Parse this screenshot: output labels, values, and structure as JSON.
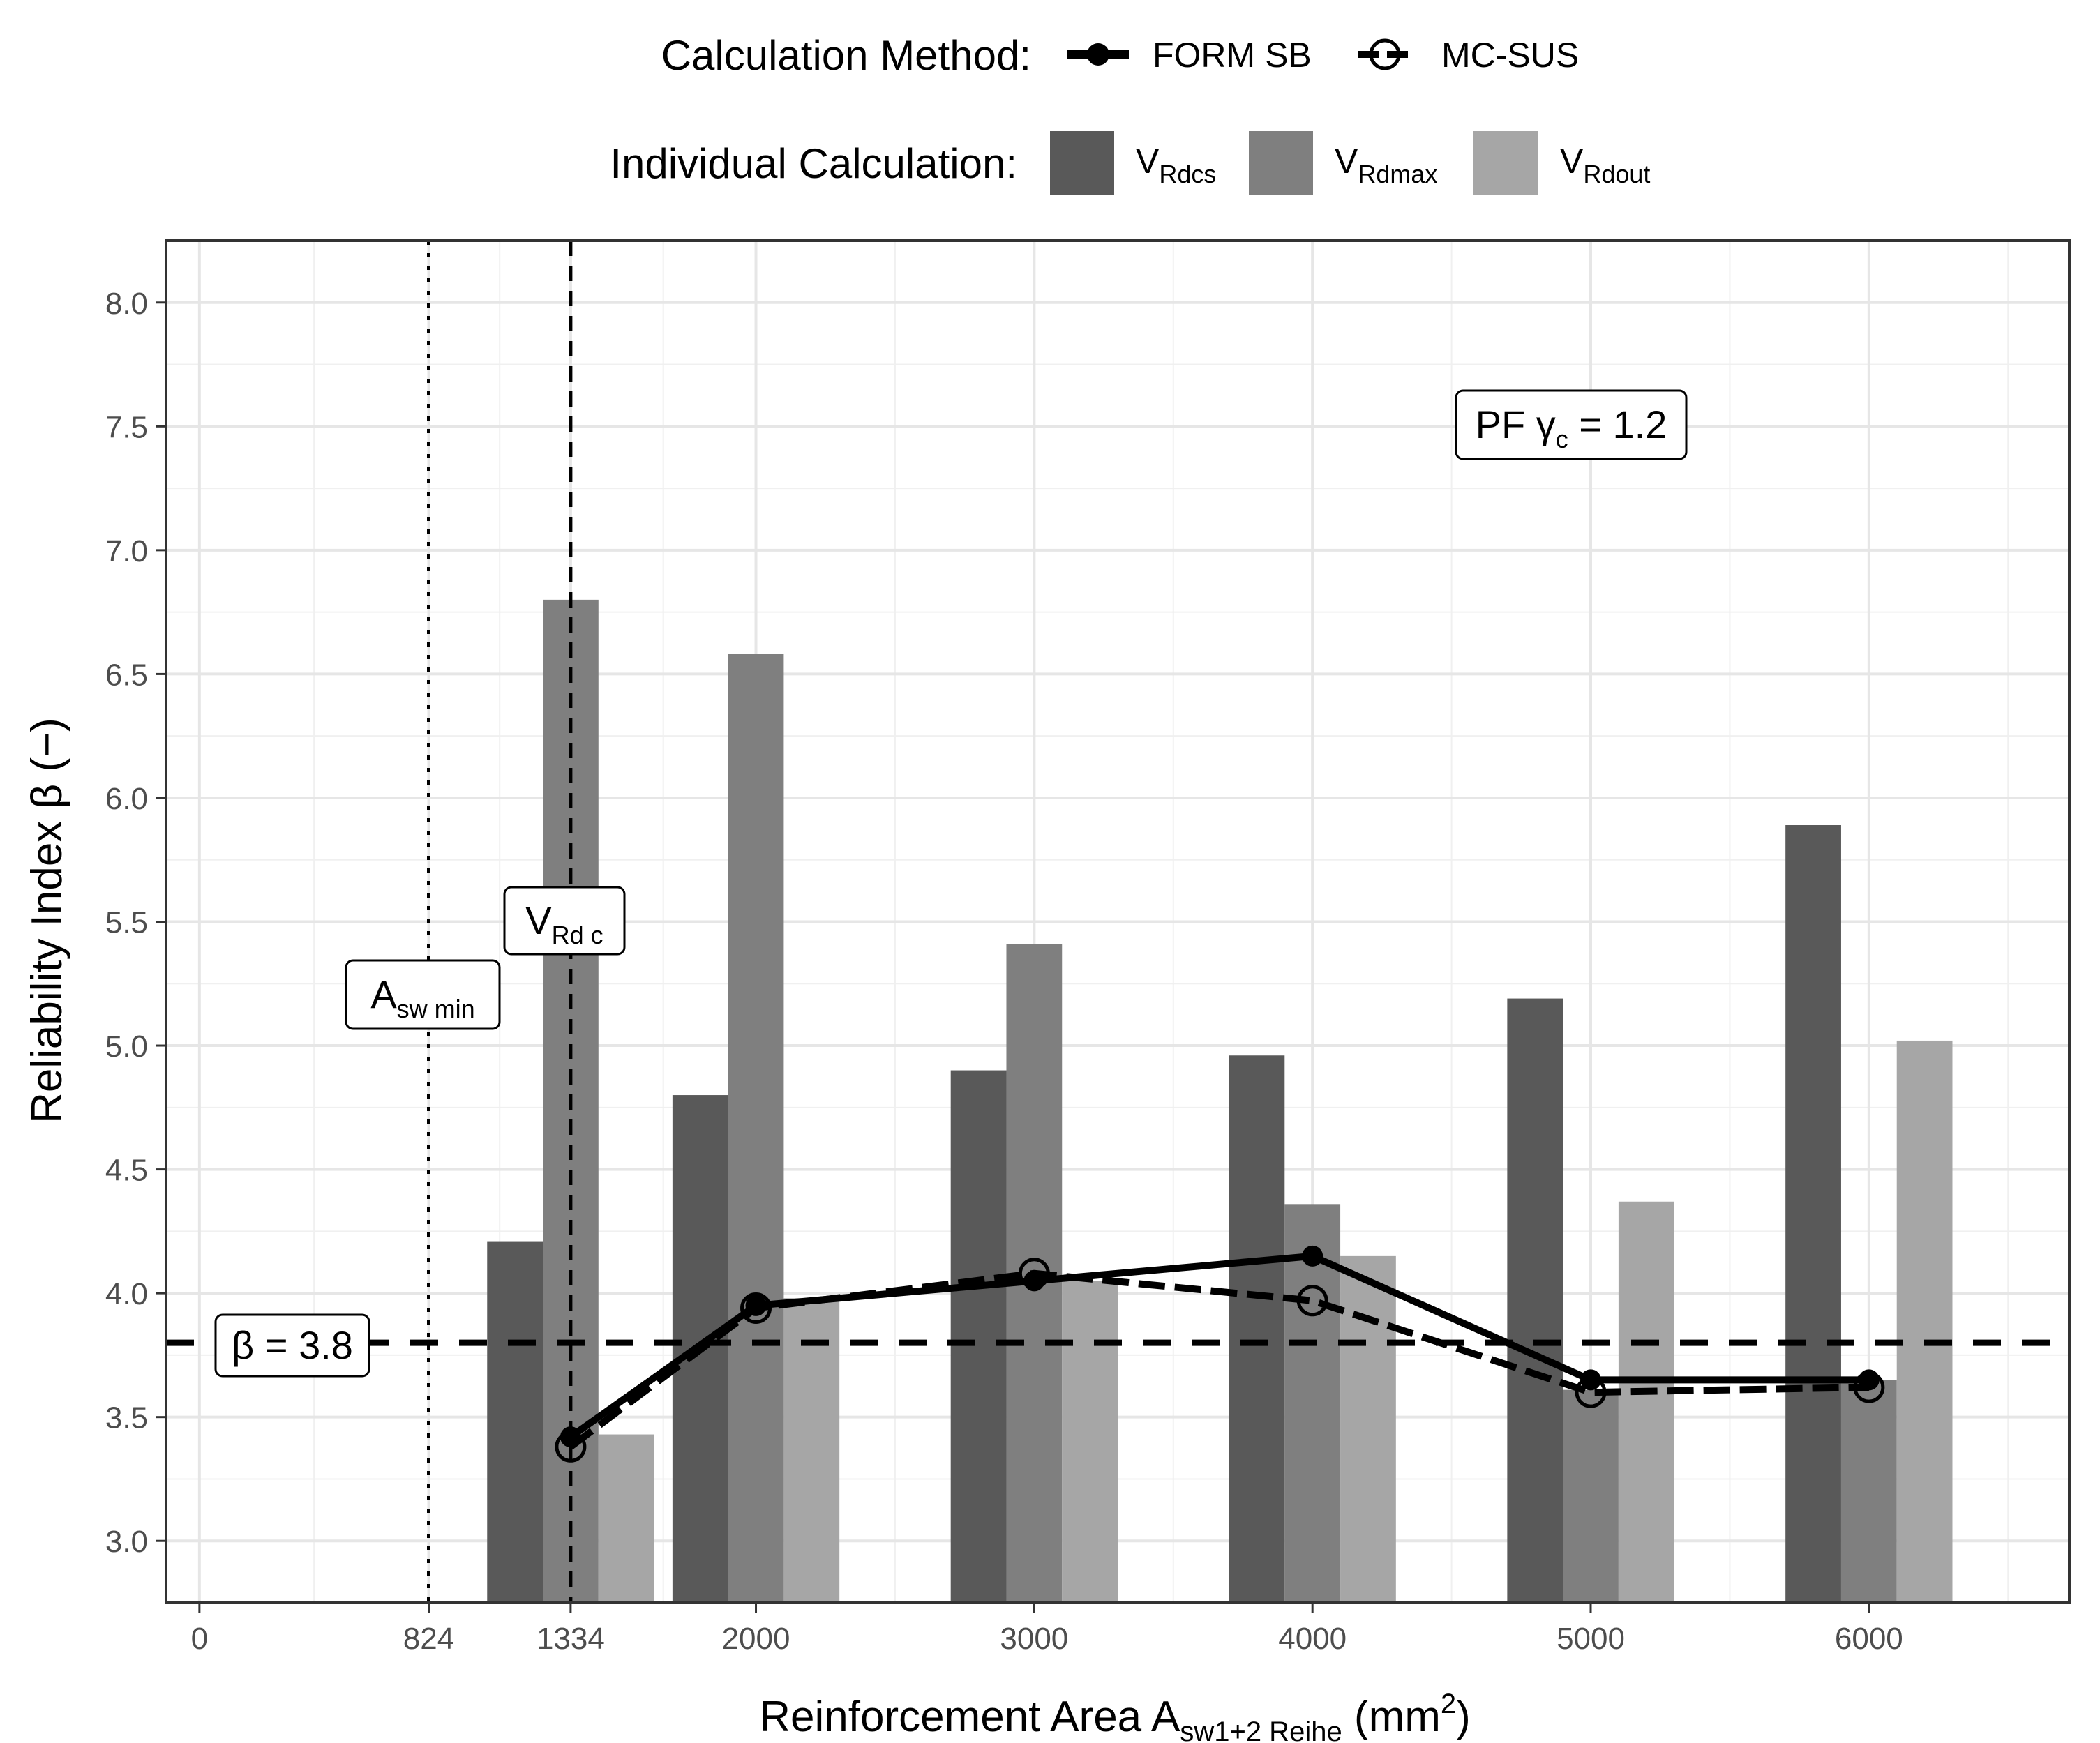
{
  "chart_data": {
    "type": "bar",
    "title": "",
    "xlabel": "Reinforcement Area A",
    "xlabel_sub": "sw1+2 Reihe",
    "xlabel_unit_pre": " (mm",
    "xlabel_unit_sup": "2",
    "xlabel_unit_post": ")",
    "ylabel": "Reliability Index  β (−)",
    "xlim": [
      -120,
      6720
    ],
    "ylim": [
      2.75,
      8.25
    ],
    "xticks": [
      0,
      824,
      1334,
      2000,
      3000,
      4000,
      5000,
      6000
    ],
    "yticks": [
      3.0,
      3.5,
      4.0,
      4.5,
      5.0,
      5.5,
      6.0,
      6.5,
      7.0,
      7.5,
      8.0
    ],
    "ytick_labels": [
      "3.0",
      "3.5",
      "4.0",
      "4.5",
      "5.0",
      "5.5",
      "6.0",
      "6.5",
      "7.0",
      "7.5",
      "8.0"
    ],
    "categories": [
      1334,
      2000,
      3000,
      4000,
      5000,
      6000
    ],
    "bar_series": [
      {
        "name": "V_Rdcs",
        "label_main": "V",
        "label_sub": "Rdcs",
        "color": "#595959",
        "values": [
          4.21,
          4.8,
          4.9,
          4.96,
          5.19,
          5.89
        ]
      },
      {
        "name": "V_Rdmax",
        "label_main": "V",
        "label_sub": "Rdmax",
        "color": "#7f7f7f",
        "values": [
          6.8,
          6.58,
          5.41,
          4.36,
          3.61,
          3.65
        ]
      },
      {
        "name": "V_Rdout",
        "label_main": "V",
        "label_sub": "Rdout",
        "color": "#a6a6a6",
        "values": [
          3.43,
          3.98,
          4.05,
          4.15,
          4.37,
          5.02
        ]
      }
    ],
    "line_series": [
      {
        "name": "FORM SB",
        "marker": "filled-circle",
        "linestyle": "solid",
        "x": [
          1334,
          2000,
          3000,
          4000,
          5000,
          6000
        ],
        "y": [
          3.42,
          3.95,
          4.05,
          4.15,
          3.65,
          3.65
        ]
      },
      {
        "name": "MC-SUS",
        "marker": "open-circle",
        "linestyle": "dashed",
        "x": [
          1334,
          2000,
          3000,
          4000,
          5000,
          6000
        ],
        "y": [
          3.38,
          3.94,
          4.08,
          3.97,
          3.6,
          3.62
        ]
      }
    ],
    "reference_lines": [
      {
        "axis": "y",
        "value": 3.8,
        "style": "dashed",
        "label": "β = 3.8"
      },
      {
        "axis": "x",
        "value": 824,
        "style": "dotted",
        "label_main": "A",
        "label_sub": "sw min"
      },
      {
        "axis": "x",
        "value": 1334,
        "style": "dashed",
        "label_main": "V",
        "label_sub": "Rd c"
      }
    ],
    "annotations": [
      {
        "text_main": "PF γ",
        "text_sub": "c",
        "text_post": " = 1.2",
        "x": 5000,
        "y": 7.5
      }
    ],
    "legend": {
      "position": "top",
      "method_title": "Calculation Method:",
      "calc_title": "Individual Calculation:"
    },
    "grid": true
  }
}
